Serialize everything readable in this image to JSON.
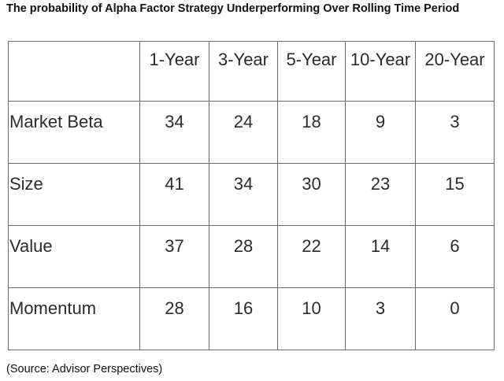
{
  "title": "The probability of Alpha Factor Strategy Underperforming Over Rolling Time Period",
  "table": {
    "corner": "",
    "headers": [
      "1-Year",
      "3-Year",
      "5-Year",
      "10-Year",
      "20-Year"
    ],
    "rows": [
      {
        "label": "Market Beta",
        "values": [
          "34",
          "24",
          "18",
          "9",
          "3"
        ]
      },
      {
        "label": "Size",
        "values": [
          "41",
          "34",
          "30",
          "23",
          "15"
        ]
      },
      {
        "label": "Value",
        "values": [
          "37",
          "28",
          "22",
          "14",
          "6"
        ]
      },
      {
        "label": "Momentum",
        "values": [
          "28",
          "16",
          "10",
          "3",
          "0"
        ]
      }
    ]
  },
  "source": "(Source: Advisor Perspectives)",
  "colors": {
    "border": "#6a6a6a",
    "text": "#2b2b2b"
  }
}
